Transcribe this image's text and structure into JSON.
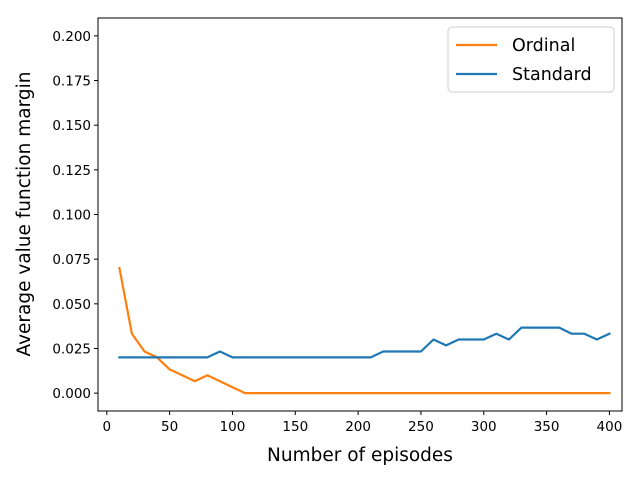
{
  "chart_data": {
    "type": "line",
    "title": "",
    "xlabel": "Number of episodes",
    "ylabel": "Average value function margin",
    "xlim": [
      -7,
      410
    ],
    "ylim": [
      -0.01,
      0.21
    ],
    "xticks": [
      0,
      50,
      100,
      150,
      200,
      250,
      300,
      350,
      400
    ],
    "xtick_labels": [
      "0",
      "50",
      "100",
      "150",
      "200",
      "250",
      "300",
      "350",
      "400"
    ],
    "yticks": [
      0.0,
      0.025,
      0.05,
      0.075,
      0.1,
      0.125,
      0.15,
      0.175,
      0.2
    ],
    "ytick_labels": [
      "0.000",
      "0.025",
      "0.050",
      "0.075",
      "0.100",
      "0.125",
      "0.150",
      "0.175",
      "0.200"
    ],
    "grid": false,
    "legend_position": "top-right",
    "x": [
      10,
      20,
      30,
      40,
      50,
      60,
      70,
      80,
      90,
      100,
      110,
      120,
      130,
      140,
      150,
      160,
      170,
      180,
      190,
      200,
      210,
      220,
      230,
      240,
      250,
      260,
      270,
      280,
      290,
      300,
      310,
      320,
      330,
      340,
      350,
      360,
      370,
      380,
      390,
      400
    ],
    "series": [
      {
        "name": "Ordinal",
        "color": "#ff7f0e",
        "values": [
          0.07,
          0.0333,
          0.0233,
          0.02,
          0.0133,
          0.01,
          0.0067,
          0.01,
          0.0067,
          0.0033,
          0,
          0,
          0,
          0,
          0,
          0,
          0,
          0,
          0,
          0,
          0,
          0,
          0,
          0,
          0,
          0,
          0,
          0,
          0,
          0,
          0,
          0,
          0,
          0,
          0,
          0,
          0,
          0,
          0,
          0
        ]
      },
      {
        "name": "Standard",
        "color": "#1f77b4",
        "values": [
          0.02,
          0.02,
          0.02,
          0.02,
          0.02,
          0.02,
          0.02,
          0.02,
          0.0233,
          0.02,
          0.02,
          0.02,
          0.02,
          0.02,
          0.02,
          0.02,
          0.02,
          0.02,
          0.02,
          0.02,
          0.02,
          0.0233,
          0.0233,
          0.0233,
          0.0233,
          0.03,
          0.0267,
          0.03,
          0.03,
          0.03,
          0.0333,
          0.03,
          0.0367,
          0.0367,
          0.0367,
          0.0367,
          0.0333,
          0.0333,
          0.03,
          0.0333
        ]
      }
    ]
  }
}
